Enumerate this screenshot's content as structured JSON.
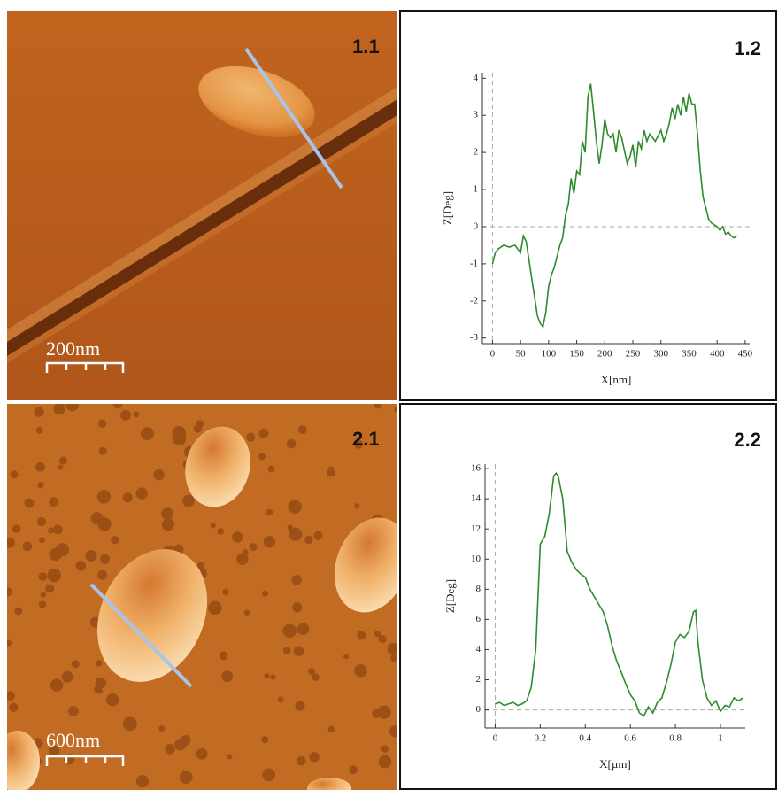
{
  "images": [
    {
      "label": "1.1",
      "scale_bar": "200nm"
    },
    {
      "label": "2.1",
      "scale_bar": "600nm"
    }
  ],
  "chart_data": [
    {
      "type": "line",
      "title": "1.2",
      "x_label": "X[nm]",
      "y_label": "Z[Deg]",
      "color": "#2e8b2e",
      "x": [
        0,
        5,
        10,
        20,
        30,
        40,
        50,
        55,
        60,
        65,
        70,
        75,
        80,
        85,
        90,
        95,
        100,
        105,
        110,
        115,
        120,
        125,
        130,
        135,
        140,
        145,
        150,
        155,
        160,
        165,
        170,
        175,
        180,
        185,
        190,
        195,
        200,
        205,
        210,
        215,
        220,
        225,
        230,
        240,
        245,
        250,
        255,
        260,
        265,
        270,
        275,
        280,
        290,
        300,
        305,
        310,
        315,
        320,
        325,
        330,
        335,
        340,
        345,
        350,
        355,
        360,
        365,
        370,
        375,
        380,
        385,
        390,
        400,
        405,
        410,
        415,
        420,
        425,
        430,
        435
      ],
      "values": [
        -1.0,
        -0.7,
        -0.6,
        -0.5,
        -0.55,
        -0.5,
        -0.7,
        -0.25,
        -0.4,
        -0.9,
        -1.4,
        -1.9,
        -2.4,
        -2.6,
        -2.7,
        -2.3,
        -1.6,
        -1.3,
        -1.1,
        -0.8,
        -0.5,
        -0.3,
        0.3,
        0.6,
        1.3,
        0.9,
        1.5,
        1.4,
        2.3,
        2.0,
        3.5,
        3.85,
        3.1,
        2.3,
        1.7,
        2.2,
        2.9,
        2.5,
        2.4,
        2.5,
        2.0,
        2.6,
        2.4,
        1.7,
        1.9,
        2.2,
        1.6,
        2.3,
        2.1,
        2.6,
        2.3,
        2.5,
        2.3,
        2.6,
        2.3,
        2.5,
        2.8,
        3.2,
        2.9,
        3.3,
        3.0,
        3.5,
        3.1,
        3.6,
        3.3,
        3.3,
        2.5,
        1.5,
        0.8,
        0.5,
        0.2,
        0.1,
        0.0,
        -0.1,
        0.0,
        -0.2,
        -0.15,
        -0.25,
        -0.3,
        -0.25
      ],
      "xlim": [
        -18,
        458
      ],
      "ylim": [
        -3.15,
        4.15
      ],
      "xticks": [
        0,
        50,
        100,
        150,
        200,
        250,
        300,
        350,
        400,
        450
      ],
      "yticks": [
        -3,
        -2,
        -1,
        0,
        1,
        2,
        3,
        4
      ],
      "reference_lines": {
        "x": 0,
        "y": 0
      }
    },
    {
      "type": "line",
      "title": "2.2",
      "x_label": "X[µm]",
      "y_label": "Z[Deg]",
      "color": "#2e8b2e",
      "x": [
        0,
        0.02,
        0.04,
        0.06,
        0.08,
        0.1,
        0.12,
        0.14,
        0.16,
        0.18,
        0.2,
        0.22,
        0.24,
        0.26,
        0.27,
        0.28,
        0.3,
        0.32,
        0.34,
        0.36,
        0.38,
        0.4,
        0.42,
        0.44,
        0.46,
        0.48,
        0.5,
        0.52,
        0.54,
        0.56,
        0.58,
        0.6,
        0.62,
        0.64,
        0.66,
        0.68,
        0.7,
        0.72,
        0.74,
        0.76,
        0.78,
        0.8,
        0.82,
        0.84,
        0.86,
        0.88,
        0.89,
        0.9,
        0.92,
        0.94,
        0.96,
        0.98,
        1.0,
        1.02,
        1.04,
        1.06,
        1.08,
        1.1
      ],
      "values": [
        0.4,
        0.5,
        0.3,
        0.4,
        0.5,
        0.3,
        0.4,
        0.6,
        1.5,
        4,
        11,
        11.5,
        13,
        15.5,
        15.7,
        15.5,
        14,
        10.5,
        9.8,
        9.3,
        9.0,
        8.8,
        8.0,
        7.5,
        7.0,
        6.5,
        5.5,
        4.2,
        3.2,
        2.5,
        1.7,
        1.0,
        0.6,
        -0.2,
        -0.4,
        0.2,
        -0.2,
        0.5,
        0.8,
        1.8,
        3.0,
        4.5,
        5.0,
        4.8,
        5.2,
        6.5,
        6.6,
        4.5,
        2.0,
        0.8,
        0.3,
        0.6,
        -0.1,
        0.3,
        0.2,
        0.8,
        0.6,
        0.8
      ],
      "xlim": [
        -0.045,
        1.11
      ],
      "ylim": [
        -1.2,
        16.3
      ],
      "xticks": [
        0,
        0.2,
        0.4,
        0.6,
        0.8,
        1
      ],
      "yticks": [
        0,
        2,
        4,
        6,
        8,
        10,
        12,
        14,
        16
      ],
      "reference_lines": {
        "x": 0,
        "y": 0
      }
    }
  ]
}
